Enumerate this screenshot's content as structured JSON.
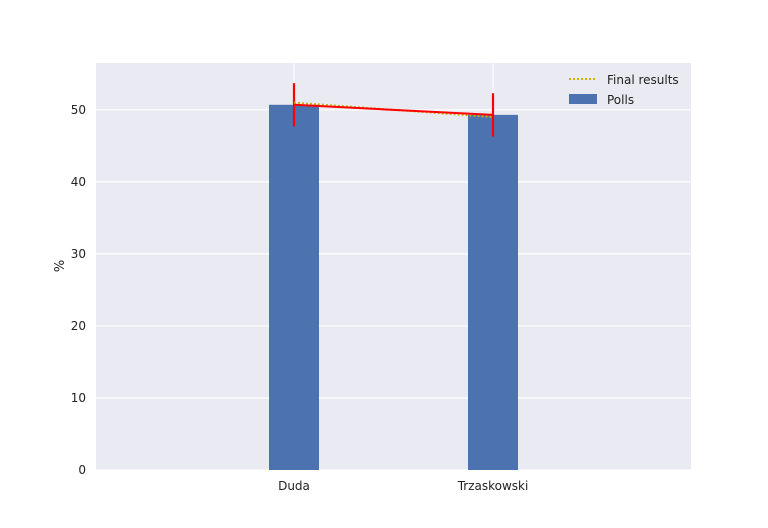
{
  "chart_data": {
    "type": "bar",
    "title": "",
    "xlabel": "",
    "ylabel": "%",
    "categories": [
      "Duda",
      "Trzaskowski"
    ],
    "series": [
      {
        "name": "Polls",
        "type": "bar",
        "values": [
          50.7,
          49.3
        ],
        "error": [
          3.0,
          3.0
        ],
        "color": "#4c72b0",
        "error_color": "#ff0000"
      },
      {
        "name": "Final results",
        "type": "line",
        "values": [
          51.0,
          49.0
        ],
        "color": "#ccb400",
        "style": "dotted"
      }
    ],
    "yticks": [
      "0",
      "10",
      "20",
      "30",
      "40",
      "50"
    ],
    "ylim": [
      0,
      56.5
    ],
    "grid": true,
    "legend_position": "top-right",
    "background": "#eaeaf2",
    "grid_color": "#ffffff"
  }
}
